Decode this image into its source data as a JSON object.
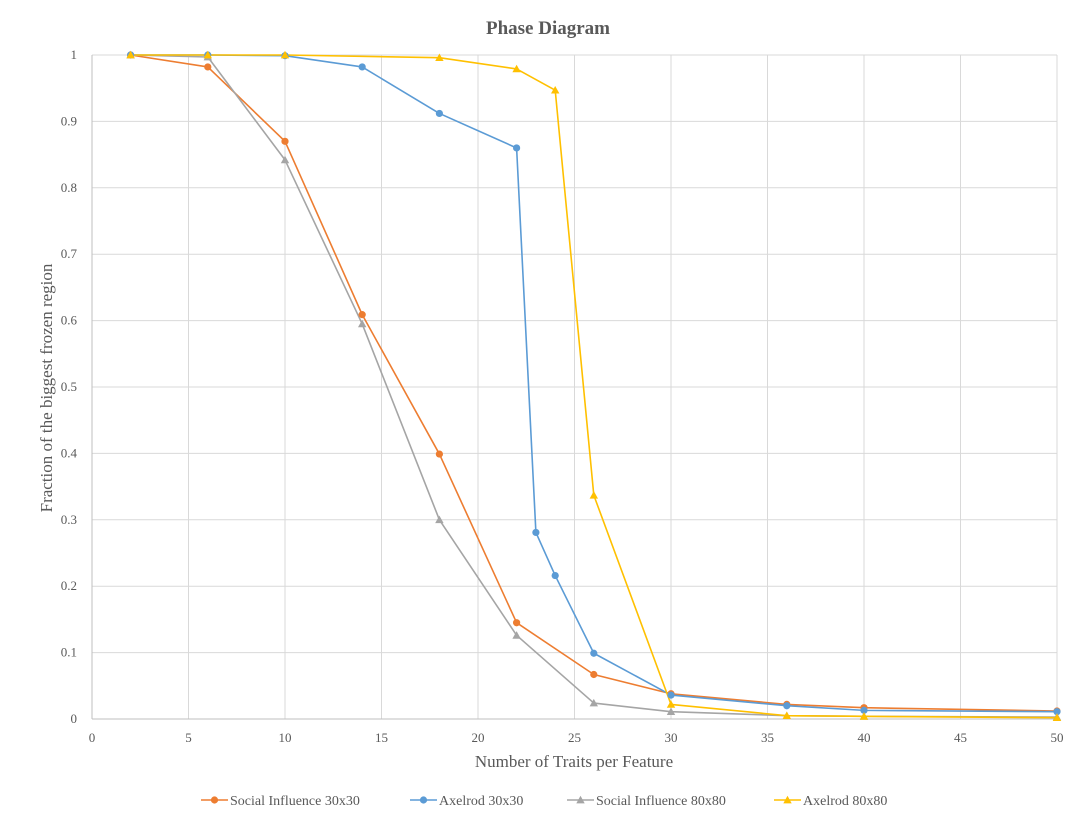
{
  "chart_data": {
    "type": "line",
    "title": "Phase Diagram",
    "xlabel": "Number of Traits per Feature",
    "ylabel": "Fraction of the biggest frozen region",
    "xlim": [
      0,
      50
    ],
    "ylim": [
      0,
      1
    ],
    "x_ticks": [
      0,
      5,
      10,
      15,
      20,
      25,
      30,
      35,
      40,
      45,
      50
    ],
    "y_ticks": [
      0,
      0.1,
      0.2,
      0.3,
      0.4,
      0.5,
      0.6,
      0.7,
      0.8,
      0.9,
      1
    ],
    "x_tick_labels": [
      "0",
      "5",
      "10",
      "15",
      "20",
      "25",
      "30",
      "35",
      "40",
      "45",
      "50"
    ],
    "y_tick_labels": [
      "0",
      "0.1",
      "0.2",
      "0.3",
      "0.4",
      "0.5",
      "0.6",
      "0.7",
      "0.8",
      "0.9",
      "1"
    ],
    "grid": true,
    "legend_position": "bottom",
    "series": [
      {
        "name": "Social Influence 30x30",
        "color": "#ED7D31",
        "marker": "circle",
        "x": [
          2,
          6,
          10,
          14,
          18,
          22,
          26,
          30,
          36,
          40,
          50
        ],
        "y": [
          1.0,
          0.982,
          0.87,
          0.609,
          0.399,
          0.145,
          0.067,
          0.038,
          0.022,
          0.017,
          0.012
        ]
      },
      {
        "name": "Axelrod 30x30",
        "color": "#5B9BD5",
        "marker": "circle",
        "x": [
          2,
          6,
          10,
          14,
          18,
          22,
          23,
          24,
          26,
          30,
          36,
          40,
          50
        ],
        "y": [
          1.0,
          1.0,
          0.999,
          0.982,
          0.912,
          0.86,
          0.281,
          0.216,
          0.099,
          0.036,
          0.02,
          0.013,
          0.011
        ]
      },
      {
        "name": "Social Influence 80x80",
        "color": "#A5A5A5",
        "marker": "triangle",
        "x": [
          2,
          6,
          10,
          14,
          18,
          22,
          26,
          30,
          36,
          40,
          50
        ],
        "y": [
          1.0,
          0.997,
          0.842,
          0.595,
          0.3,
          0.126,
          0.024,
          0.011,
          0.005,
          0.004,
          0.003
        ]
      },
      {
        "name": "Axelrod 80x80",
        "color": "#FFC000",
        "marker": "triangle",
        "x": [
          2,
          6,
          10,
          18,
          22,
          24,
          26,
          30,
          36,
          40,
          50
        ],
        "y": [
          1.0,
          1.0,
          1.0,
          0.996,
          0.979,
          0.947,
          0.337,
          0.022,
          0.005,
          0.004,
          0.002
        ]
      }
    ]
  }
}
